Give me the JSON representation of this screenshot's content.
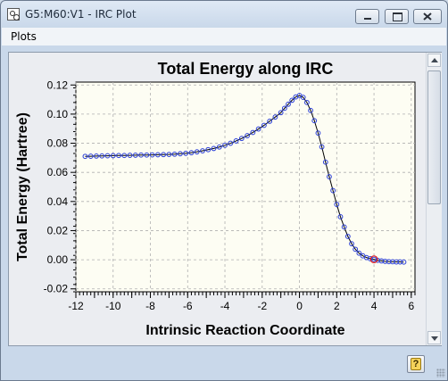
{
  "window": {
    "title": "G5:M60:V1 - IRC Plot",
    "menu": [
      "Plots"
    ]
  },
  "colors": {
    "plot_background": "#fdfdf3",
    "line": "#000000",
    "marker": "#2b3fd8",
    "highlight_marker": "#e01b1b"
  },
  "icons": {
    "app": "gaussview-app-icon",
    "minimize": "minimize-icon",
    "maximize": "maximize-icon",
    "close": "close-icon",
    "help": "help-icon"
  },
  "chart_data": {
    "type": "line",
    "title": "Total Energy along IRC",
    "xlabel": "Intrinsic Reaction Coordinate",
    "ylabel": "Total Energy (Hartree)",
    "xlim": [
      -12,
      6.2
    ],
    "ylim": [
      -0.022,
      0.122
    ],
    "xticks": [
      -12,
      -11,
      -10,
      -9,
      -8,
      -7,
      -6,
      -5,
      -4,
      -3,
      -2,
      -1,
      0,
      1,
      2,
      3,
      4,
      5,
      6
    ],
    "xtick_labels": [
      "-12",
      "",
      "-10",
      "",
      "-8",
      "",
      "-6",
      "",
      "-4",
      "",
      "-2",
      "",
      "0",
      "",
      "2",
      "",
      "4",
      "",
      "6"
    ],
    "yticks": [
      -0.02,
      0.0,
      0.02,
      0.04,
      0.06,
      0.08,
      0.1,
      0.12
    ],
    "ytick_labels": [
      "-0.02",
      "0.00",
      "0.02",
      "0.04",
      "0.06",
      "0.08",
      "0.10",
      "0.12"
    ],
    "grid": true,
    "highlight_x": 4.0,
    "series": [
      {
        "x": [
          -11.5,
          -11.2,
          -10.9,
          -10.6,
          -10.3,
          -10.0,
          -9.7,
          -9.4,
          -9.1,
          -8.8,
          -8.5,
          -8.2,
          -7.9,
          -7.6,
          -7.3,
          -7.0,
          -6.7,
          -6.4,
          -6.1,
          -5.8,
          -5.5,
          -5.2,
          -4.9,
          -4.6,
          -4.3,
          -4.0,
          -3.7,
          -3.4,
          -3.1,
          -2.8,
          -2.5,
          -2.2,
          -1.9,
          -1.6,
          -1.3,
          -1.0,
          -0.8,
          -0.6,
          -0.4,
          -0.2,
          0.0,
          0.2,
          0.4,
          0.6,
          0.8,
          1.0,
          1.2,
          1.4,
          1.6,
          1.8,
          2.0,
          2.2,
          2.4,
          2.6,
          2.8,
          3.0,
          3.2,
          3.4,
          3.6,
          3.8,
          4.0,
          4.2,
          4.4,
          4.6,
          4.8,
          5.0,
          5.2,
          5.4,
          5.6
        ],
        "y": [
          0.071,
          0.0711,
          0.0712,
          0.0713,
          0.0714,
          0.0715,
          0.0716,
          0.0716,
          0.0717,
          0.0718,
          0.0719,
          0.0719,
          0.072,
          0.0721,
          0.0722,
          0.0723,
          0.0725,
          0.0728,
          0.0731,
          0.0735,
          0.0741,
          0.0748,
          0.0756,
          0.0764,
          0.0774,
          0.0786,
          0.08,
          0.0816,
          0.0833,
          0.0852,
          0.0874,
          0.0898,
          0.0923,
          0.0951,
          0.098,
          0.101,
          0.104,
          0.1068,
          0.1095,
          0.1118,
          0.1128,
          0.1115,
          0.108,
          0.1025,
          0.0955,
          0.087,
          0.0775,
          0.067,
          0.057,
          0.0475,
          0.038,
          0.0295,
          0.0225,
          0.016,
          0.011,
          0.0072,
          0.0045,
          0.0027,
          0.0015,
          0.0007,
          0.0003,
          -0.0004,
          -0.0008,
          -0.0011,
          -0.0013,
          -0.0014,
          -0.0015,
          -0.0015,
          -0.0016
        ]
      }
    ]
  }
}
